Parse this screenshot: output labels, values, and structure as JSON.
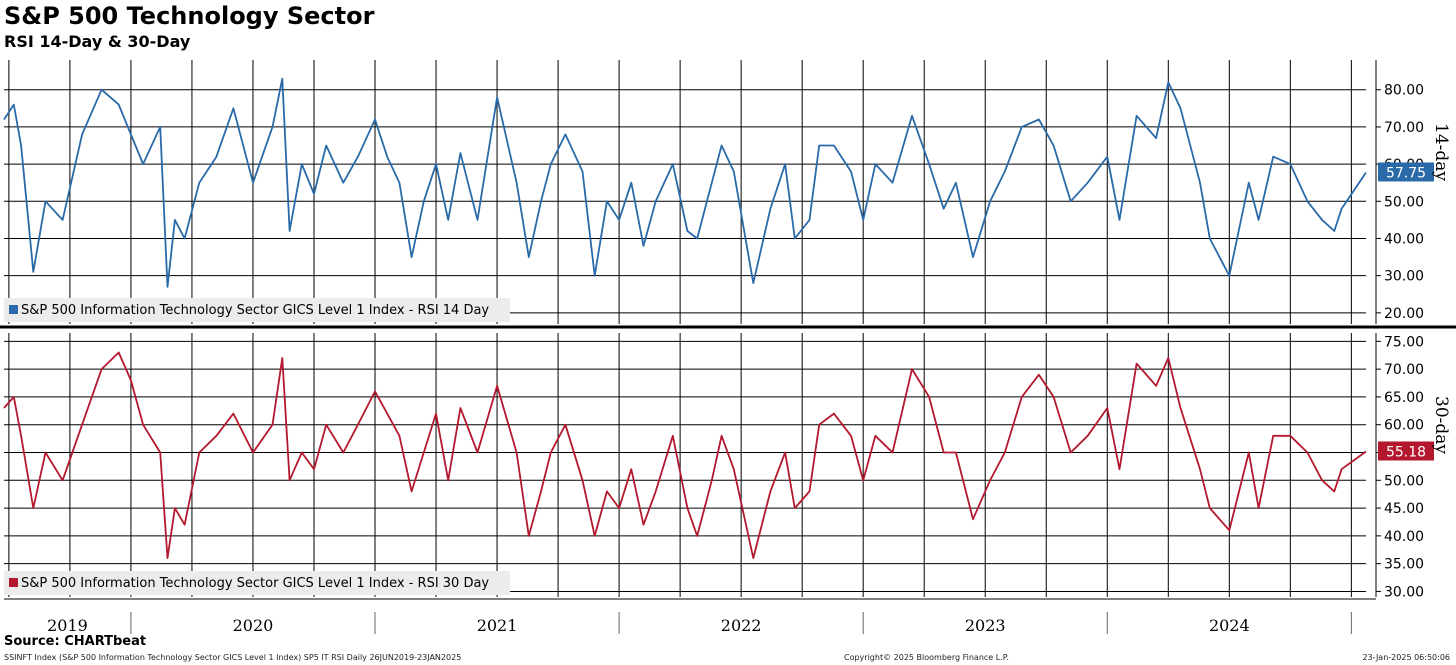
{
  "title": "S&P 500 Technology Sector",
  "subtitle": "RSI 14-Day & 30-Day",
  "source": "Source: CHARTbeat",
  "footer": {
    "left": "SSINFT Index (S&P 500 Information Technology Sector GICS Level 1 Index) SP5 IT RSI  Daily 26JUN2019-23JAN2025",
    "center": "Copyright© 2025 Bloomberg Finance L.P.",
    "right": "23-Jan-2025 06:50:06"
  },
  "colors": {
    "rsi14": "#2a6aa8",
    "rsi30": "#b4182e",
    "grid": "#000000"
  },
  "chart_data": [
    {
      "type": "line",
      "panel": "top",
      "series_name": "S&P 500 Information Technology Sector GICS Level 1 Index - RSI 14 Day",
      "axis_label": "14-day",
      "last_value_label": "57.75",
      "ylim": [
        17,
        88
      ],
      "yticks": [
        20,
        30,
        40,
        50,
        60,
        70,
        80
      ],
      "ytick_labels": [
        "20.00",
        "30.00",
        "40.00",
        "50.00",
        "60.00",
        "70.00",
        "80.00"
      ],
      "x": [
        2019.48,
        2019.52,
        2019.55,
        2019.6,
        2019.65,
        2019.72,
        2019.8,
        2019.88,
        2019.95,
        2020.0,
        2020.05,
        2020.12,
        2020.15,
        2020.18,
        2020.22,
        2020.28,
        2020.35,
        2020.42,
        2020.5,
        2020.58,
        2020.62,
        2020.65,
        2020.7,
        2020.75,
        2020.8,
        2020.87,
        2020.93,
        2021.0,
        2021.05,
        2021.1,
        2021.15,
        2021.2,
        2021.25,
        2021.3,
        2021.35,
        2021.42,
        2021.5,
        2021.58,
        2021.63,
        2021.68,
        2021.72,
        2021.78,
        2021.85,
        2021.9,
        2021.95,
        2022.0,
        2022.05,
        2022.1,
        2022.15,
        2022.22,
        2022.28,
        2022.32,
        2022.38,
        2022.42,
        2022.47,
        2022.55,
        2022.62,
        2022.68,
        2022.72,
        2022.78,
        2022.82,
        2022.88,
        2022.95,
        2023.0,
        2023.05,
        2023.12,
        2023.2,
        2023.27,
        2023.33,
        2023.38,
        2023.45,
        2023.52,
        2023.58,
        2023.65,
        2023.72,
        2023.78,
        2023.85,
        2023.92,
        2024.0,
        2024.05,
        2024.12,
        2024.2,
        2024.25,
        2024.3,
        2024.38,
        2024.42,
        2024.5,
        2024.58,
        2024.62,
        2024.68,
        2024.75,
        2024.82,
        2024.88,
        2024.93,
        2024.96,
        2025.06
      ],
      "values": [
        72,
        76,
        65,
        31,
        50,
        45,
        68,
        80,
        76,
        68,
        60,
        70,
        27,
        45,
        40,
        55,
        62,
        75,
        55,
        70,
        83,
        42,
        60,
        52,
        65,
        55,
        62,
        72,
        62,
        55,
        35,
        50,
        60,
        45,
        63,
        45,
        78,
        55,
        35,
        50,
        60,
        68,
        58,
        30,
        50,
        45,
        55,
        38,
        50,
        60,
        42,
        40,
        55,
        65,
        58,
        28,
        48,
        60,
        40,
        45,
        65,
        65,
        58,
        45,
        60,
        55,
        73,
        60,
        48,
        55,
        35,
        50,
        58,
        70,
        72,
        65,
        50,
        55,
        62,
        45,
        73,
        67,
        82,
        75,
        55,
        40,
        30,
        55,
        45,
        62,
        60,
        50,
        45,
        42,
        48,
        57.75
      ]
    },
    {
      "type": "line",
      "panel": "bottom",
      "series_name": "S&P 500 Information Technology Sector GICS Level 1 Index - RSI 30 Day",
      "axis_label": "30-day",
      "last_value_label": "55.18",
      "ylim": [
        29,
        76.5
      ],
      "yticks": [
        30,
        35,
        40,
        45,
        50,
        55,
        60,
        65,
        70,
        75
      ],
      "ytick_labels": [
        "30.00",
        "35.00",
        "40.00",
        "45.00",
        "50.00",
        "55.00",
        "60.00",
        "65.00",
        "70.00",
        "75.00"
      ],
      "x": [
        2019.48,
        2019.52,
        2019.55,
        2019.6,
        2019.65,
        2019.72,
        2019.8,
        2019.88,
        2019.95,
        2020.0,
        2020.05,
        2020.12,
        2020.15,
        2020.18,
        2020.22,
        2020.28,
        2020.35,
        2020.42,
        2020.5,
        2020.58,
        2020.62,
        2020.65,
        2020.7,
        2020.75,
        2020.8,
        2020.87,
        2020.93,
        2021.0,
        2021.05,
        2021.1,
        2021.15,
        2021.2,
        2021.25,
        2021.3,
        2021.35,
        2021.42,
        2021.5,
        2021.58,
        2021.63,
        2021.68,
        2021.72,
        2021.78,
        2021.85,
        2021.9,
        2021.95,
        2022.0,
        2022.05,
        2022.1,
        2022.15,
        2022.22,
        2022.28,
        2022.32,
        2022.38,
        2022.42,
        2022.47,
        2022.55,
        2022.62,
        2022.68,
        2022.72,
        2022.78,
        2022.82,
        2022.88,
        2022.95,
        2023.0,
        2023.05,
        2023.12,
        2023.2,
        2023.27,
        2023.33,
        2023.38,
        2023.45,
        2023.52,
        2023.58,
        2023.65,
        2023.72,
        2023.78,
        2023.85,
        2023.92,
        2024.0,
        2024.05,
        2024.12,
        2024.2,
        2024.25,
        2024.3,
        2024.38,
        2024.42,
        2024.5,
        2024.58,
        2024.62,
        2024.68,
        2024.75,
        2024.82,
        2024.88,
        2024.93,
        2024.96,
        2025.06
      ],
      "values": [
        63,
        65,
        58,
        45,
        55,
        50,
        60,
        70,
        73,
        68,
        60,
        55,
        36,
        45,
        42,
        55,
        58,
        62,
        55,
        60,
        72,
        50,
        55,
        52,
        60,
        55,
        60,
        66,
        62,
        58,
        48,
        55,
        62,
        50,
        63,
        55,
        67,
        55,
        40,
        48,
        55,
        60,
        50,
        40,
        48,
        45,
        52,
        42,
        48,
        58,
        45,
        40,
        50,
        58,
        52,
        36,
        48,
        55,
        45,
        48,
        60,
        62,
        58,
        50,
        58,
        55,
        70,
        65,
        55,
        55,
        43,
        50,
        55,
        65,
        69,
        65,
        55,
        58,
        63,
        52,
        71,
        67,
        72,
        63,
        52,
        45,
        41,
        55,
        45,
        58,
        58,
        55,
        50,
        48,
        52,
        55.18
      ]
    },
    {
      "type": "axis",
      "xlim": [
        2019.48,
        2025.06
      ],
      "year_labels": [
        "2019",
        "2020",
        "2021",
        "2022",
        "2023",
        "2024"
      ],
      "year_positions": [
        2019.74,
        2020.5,
        2021.5,
        2022.5,
        2023.5,
        2024.5
      ],
      "year_boundaries": [
        2020.0,
        2021.0,
        2022.0,
        2023.0,
        2024.0,
        2025.0
      ],
      "quarter_grid": true
    }
  ]
}
